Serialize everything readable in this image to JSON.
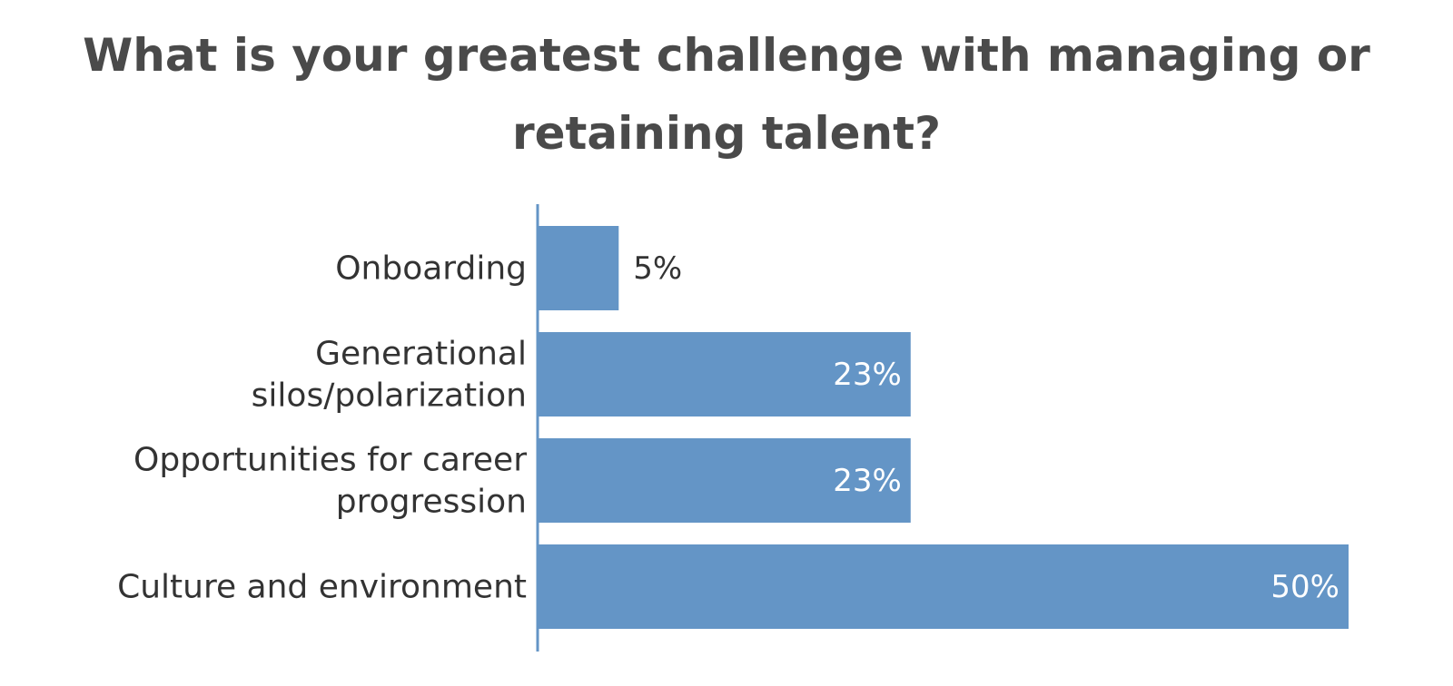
{
  "chart_data": {
    "type": "bar",
    "orientation": "horizontal",
    "title": "What is your greatest challenge with managing or retaining talent?",
    "categories": [
      [
        "Onboarding"
      ],
      [
        "Generational",
        "silos/polarization"
      ],
      [
        "Opportunities for career",
        "progression"
      ],
      [
        "Culture and environment"
      ]
    ],
    "values": [
      5,
      23,
      23,
      50
    ],
    "value_labels": [
      "5%",
      "23%",
      "23%",
      "50%"
    ],
    "color": "#6495c6",
    "xlim": [
      0,
      50
    ]
  }
}
